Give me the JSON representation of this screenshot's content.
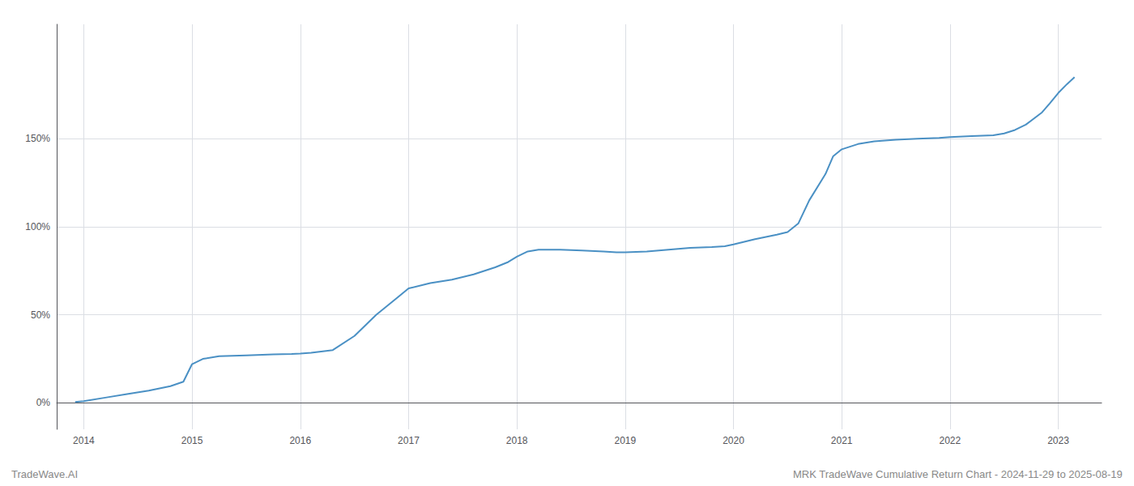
{
  "chart_data": {
    "type": "line",
    "annotations": [
      "TradeWave.AI",
      "MRK TradeWave Cumulative Return Chart - 2024-11-29 to 2025-08-19"
    ],
    "color": "#4a90c4",
    "grid": true,
    "x": [
      2013.92,
      2014.0,
      2014.2,
      2014.4,
      2014.6,
      2014.8,
      2014.92,
      2015.0,
      2015.1,
      2015.25,
      2015.5,
      2015.75,
      2015.92,
      2016.0,
      2016.1,
      2016.3,
      2016.5,
      2016.7,
      2016.9,
      2017.0,
      2017.2,
      2017.4,
      2017.6,
      2017.8,
      2017.92,
      2018.0,
      2018.1,
      2018.2,
      2018.4,
      2018.6,
      2018.8,
      2018.92,
      2019.0,
      2019.2,
      2019.4,
      2019.6,
      2019.8,
      2019.92,
      2020.0,
      2020.2,
      2020.4,
      2020.5,
      2020.6,
      2020.7,
      2020.85,
      2020.92,
      2021.0,
      2021.15,
      2021.3,
      2021.5,
      2021.7,
      2021.9,
      2022.0,
      2022.2,
      2022.4,
      2022.5,
      2022.6,
      2022.7,
      2022.85,
      2022.92,
      2023.0,
      2023.08,
      2023.15
    ],
    "values": [
      0.5,
      1.0,
      3.0,
      5.0,
      7.0,
      9.5,
      12.0,
      22.0,
      25.0,
      26.5,
      27.0,
      27.5,
      27.8,
      28.0,
      28.5,
      30.0,
      38.0,
      50.0,
      60.0,
      65.0,
      68.0,
      70.0,
      73.0,
      77.0,
      80.0,
      83.0,
      86.0,
      87.0,
      87.0,
      86.5,
      86.0,
      85.5,
      85.5,
      86.0,
      87.0,
      88.0,
      88.5,
      89.0,
      90.0,
      93.0,
      95.5,
      97.0,
      102.0,
      115.0,
      130.0,
      140.0,
      144.0,
      147.0,
      148.5,
      149.5,
      150.0,
      150.5,
      151.0,
      151.5,
      152.0,
      153.0,
      155.0,
      158.0,
      165.0,
      170.0,
      176.0,
      181.0,
      185.0
    ],
    "xlim": [
      2013.75,
      2023.4
    ],
    "xticks": [
      2014,
      2015,
      2016,
      2017,
      2018,
      2019,
      2020,
      2021,
      2022,
      2023
    ],
    "ylim": [
      -15,
      215
    ],
    "yticks": [
      {
        "value": 0,
        "label": "0%"
      },
      {
        "value": 50,
        "label": "50%"
      },
      {
        "value": 100,
        "label": "100%"
      },
      {
        "value": 150,
        "label": "150%"
      }
    ]
  }
}
